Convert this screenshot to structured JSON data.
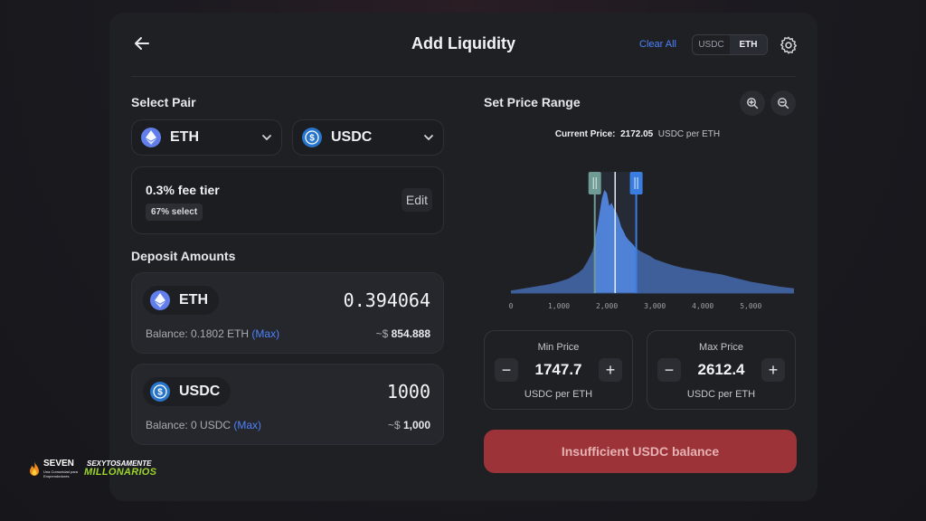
{
  "header": {
    "title": "Add Liquidity",
    "clear_all": "Clear All",
    "toggle": [
      "USDC",
      "ETH"
    ],
    "toggle_active": "ETH"
  },
  "select_pair": {
    "title": "Select Pair",
    "token_a": {
      "symbol": "ETH",
      "icon": "eth-icon"
    },
    "token_b": {
      "symbol": "USDC",
      "icon": "usdc-icon"
    }
  },
  "fee": {
    "tier": "0.3% fee tier",
    "select_pct": "67% select",
    "edit": "Edit"
  },
  "deposit": {
    "title": "Deposit Amounts",
    "eth": {
      "symbol": "ETH",
      "amount": "0.394064",
      "balance_label": "Balance: 0.1802 ETH",
      "max": "(Max)",
      "usd_prefix": "~$",
      "usd_value": "854.888"
    },
    "usdc": {
      "symbol": "USDC",
      "amount": "1000",
      "balance_label": "Balance: 0 USDC",
      "max": "(Max)",
      "usd_prefix": "~$",
      "usd_value": "1,000"
    }
  },
  "price_range": {
    "title": "Set Price Range",
    "current_label": "Current Price:",
    "current_value": "2172.05",
    "current_unit": "USDC per ETH",
    "min": {
      "label": "Min Price",
      "value": "1747.7",
      "unit": "USDC per ETH"
    },
    "max": {
      "label": "Max Price",
      "value": "2612.4",
      "unit": "USDC per ETH"
    }
  },
  "chart_data": {
    "type": "area",
    "x_ticks": [
      "0",
      "1,000",
      "2,000",
      "3,000",
      "4,000",
      "5,000"
    ],
    "xlim": [
      0,
      5900
    ],
    "current_price": 2172.05,
    "range_min": 1747.7,
    "range_max": 2612.4,
    "x": [
      0,
      200,
      400,
      600,
      800,
      1000,
      1200,
      1400,
      1500,
      1600,
      1700,
      1750,
      1800,
      1850,
      1900,
      1950,
      2000,
      2050,
      2100,
      2150,
      2200,
      2250,
      2300,
      2350,
      2400,
      2450,
      2500,
      2550,
      2600,
      2700,
      2800,
      2900,
      3000,
      3200,
      3400,
      3600,
      3800,
      4000,
      4200,
      4400,
      4600,
      4800,
      5000,
      5200,
      5400,
      5600,
      5900
    ],
    "y": [
      3,
      5,
      7,
      9,
      11,
      14,
      18,
      25,
      30,
      40,
      52,
      65,
      82,
      100,
      118,
      128,
      124,
      108,
      112,
      104,
      100,
      92,
      82,
      76,
      70,
      66,
      63,
      60,
      56,
      52,
      49,
      46,
      42,
      38,
      34,
      31,
      29,
      27,
      25,
      23,
      20,
      17,
      14,
      12,
      10,
      8,
      6
    ]
  },
  "submit": "Insufficient USDC balance",
  "watermark": {
    "brand": "SEVEN",
    "brand_sub": "Una Comunidad para Emprendedores",
    "line1": "SEXYTOSAMENTE",
    "line2": "MILLONARIOS"
  }
}
